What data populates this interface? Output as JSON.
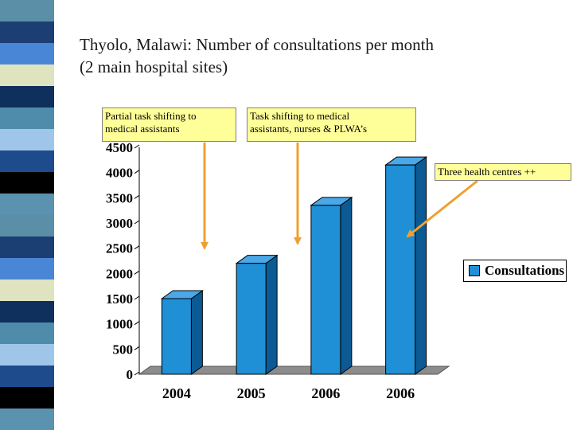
{
  "slide": {
    "title_line1": "Thyolo, Malawi: Number of consultations per month",
    "title_line2": "(2 main hospital sites)",
    "stripe_colors": [
      "#5b8fa8",
      "#1b3f73",
      "#4a86d6",
      "#dfe3c0",
      "#0f2f5c",
      "#4f8cab",
      "#9fc6e8",
      "#1e4b8c",
      "#000000",
      "#5a92b0"
    ]
  },
  "callouts": {
    "partial": {
      "line1": "Partial task shifting to",
      "line2": "medical assistants"
    },
    "full": {
      "line1": "Task shifting to medical",
      "line2": "assistants, nurses & PLWA’s"
    },
    "centres": {
      "text": "Three health centres ++"
    }
  },
  "legend": {
    "label": "Consultations",
    "color": "#1f8fd6"
  },
  "chart_data": {
    "type": "bar",
    "categories": [
      "2004",
      "2005",
      "2006",
      "2006"
    ],
    "series": [
      {
        "name": "Consultations",
        "values": [
          1500,
          2200,
          3350,
          4150
        ]
      }
    ],
    "ylim": [
      0,
      4500
    ],
    "yticks": [
      0,
      500,
      1000,
      1500,
      2000,
      2500,
      3000,
      3500,
      4000,
      4500
    ],
    "style": "3d",
    "bar_color": "#1f8fd6",
    "arrow_color": "#f0a030",
    "grid": false,
    "legend_position": "right"
  }
}
